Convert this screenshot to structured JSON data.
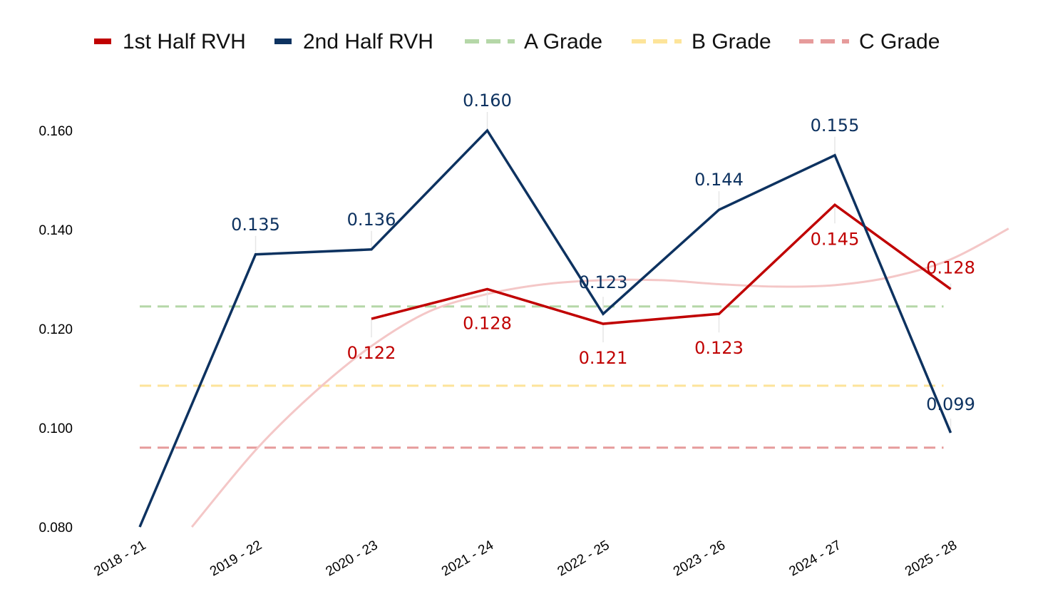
{
  "chart_data": {
    "type": "line",
    "title": "",
    "xlabel": "",
    "ylabel": "",
    "categories": [
      "2018 - 21",
      "2019 - 22",
      "2020 - 23",
      "2021 - 24",
      "2022 - 25",
      "2023 - 26",
      "2024 - 27",
      "2025 - 28"
    ],
    "yticks": [
      "0.080",
      "0.100",
      "0.120",
      "0.140",
      "0.160"
    ],
    "ylim": [
      0.08,
      0.16
    ],
    "grid": false,
    "legend_position": "top",
    "series": [
      {
        "name": "1st Half RVH",
        "color": "#c00000",
        "style": "solid",
        "values": [
          null,
          null,
          0.122,
          0.128,
          0.121,
          0.123,
          0.145,
          0.128
        ],
        "labels": [
          null,
          null,
          "0.122",
          "0.128",
          "0.121",
          "0.123",
          "0.145",
          "0.128"
        ]
      },
      {
        "name": "2nd Half RVH",
        "color": "#0d3260",
        "style": "solid",
        "values": [
          0.08,
          0.135,
          0.136,
          0.16,
          0.123,
          0.144,
          0.155,
          0.099
        ],
        "labels": [
          null,
          "0.135",
          "0.136",
          "0.160",
          "0.123",
          "0.144",
          "0.155",
          "0.099"
        ]
      }
    ],
    "reference_lines": [
      {
        "name": "A Grade",
        "value": 0.1245,
        "color": "#b5d7a8",
        "style": "dashed"
      },
      {
        "name": "B Grade",
        "value": 0.1085,
        "color": "#fde49a",
        "style": "dashed"
      },
      {
        "name": "C Grade",
        "value": 0.096,
        "color": "#e69b9b",
        "style": "dashed"
      }
    ],
    "trend_line": {
      "color": "#f4c7c7",
      "x": [
        0.45,
        1,
        1.5,
        2,
        2.5,
        3,
        3.5,
        4,
        4.5,
        5,
        5.5,
        6,
        6.5,
        7,
        7.5
      ],
      "values": [
        0.08,
        0.0955,
        0.107,
        0.1165,
        0.1235,
        0.127,
        0.129,
        0.1298,
        0.1298,
        0.129,
        0.1285,
        0.1288,
        0.1305,
        0.134,
        0.1402
      ]
    }
  }
}
